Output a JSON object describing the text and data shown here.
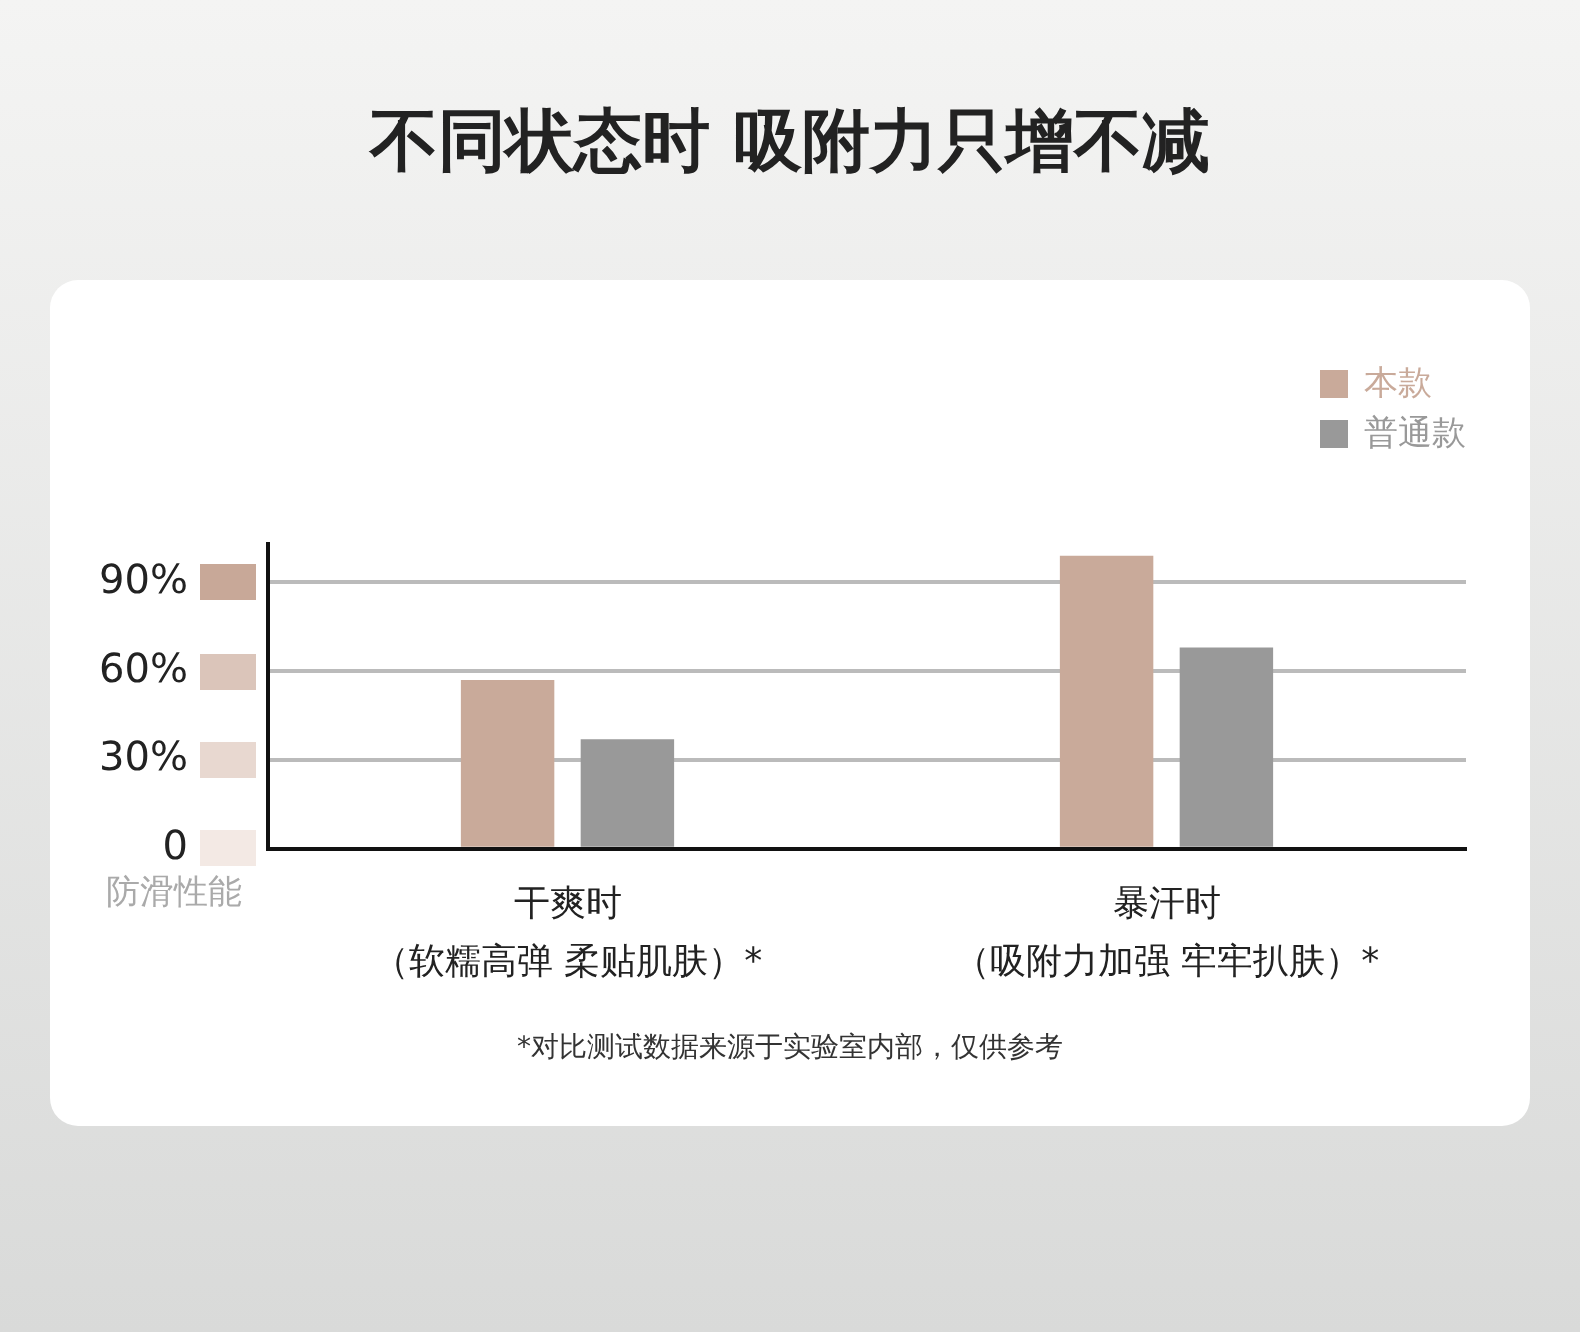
{
  "chart_data": {
    "type": "bar",
    "title": "不同状态时 吸附力只增不减",
    "ylabel": "防滑性能",
    "categories": [
      "干爽时（软糯高弹 柔贴肌肤）*",
      "暴汗时（吸附力加强 牢牢扒肤）*"
    ],
    "series": [
      {
        "name": "本款",
        "color": "#c9aa9a",
        "values": [
          57,
          99
        ]
      },
      {
        "name": "普通款",
        "color": "#999999",
        "values": [
          37,
          68
        ]
      }
    ],
    "ylim": [
      0,
      103
    ],
    "yticks": [
      {
        "value": 0,
        "label": "0"
      },
      {
        "value": 30,
        "label": "30%"
      },
      {
        "value": 60,
        "label": "60%"
      },
      {
        "value": 90,
        "label": "90%"
      }
    ],
    "grid": "y",
    "legend": "top right",
    "annotations": [
      "*对比测试数据来源于实验室内部，仅供参考"
    ]
  }
}
